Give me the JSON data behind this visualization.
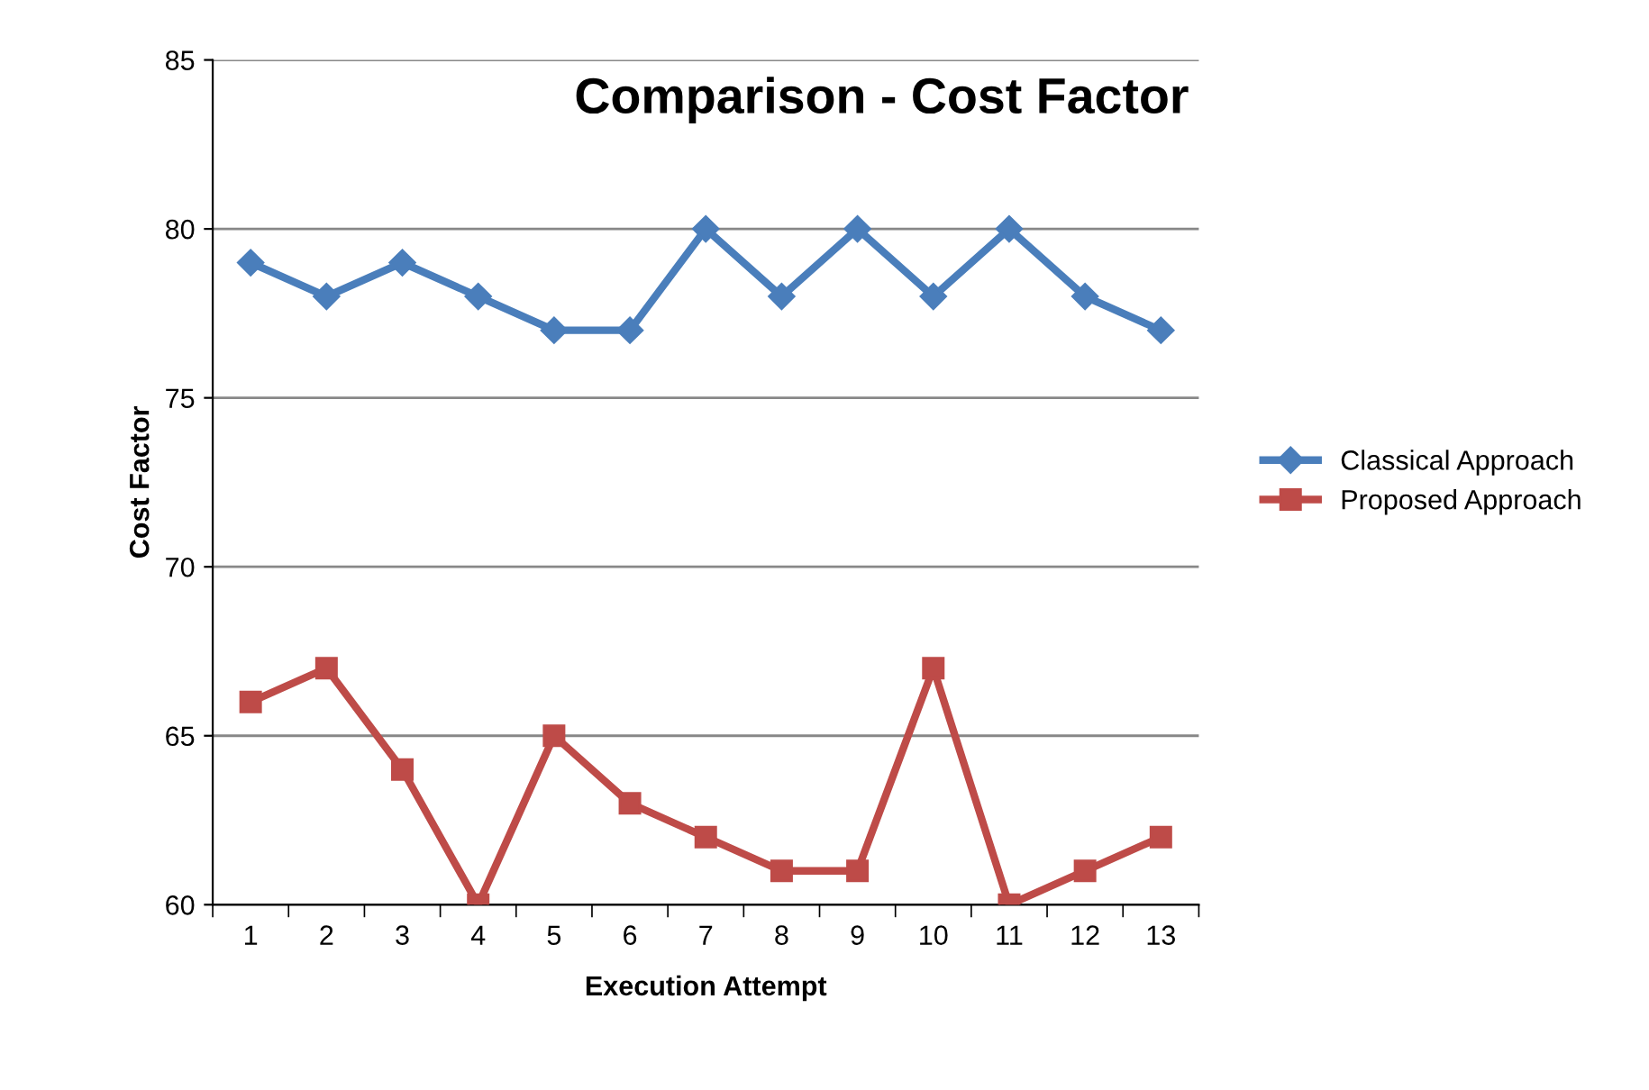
{
  "chart_data": {
    "type": "line",
    "title": "Comparison - Cost Factor",
    "xlabel": "Execution Attempt",
    "ylabel": "Cost Factor",
    "categories": [
      "1",
      "2",
      "3",
      "4",
      "5",
      "6",
      "7",
      "8",
      "9",
      "10",
      "11",
      "12",
      "13"
    ],
    "series": [
      {
        "name": "Classical Approach",
        "color": "#4a7ebb",
        "marker": "diamond",
        "values": [
          79,
          78,
          79,
          78,
          77,
          77,
          80,
          78,
          80,
          78,
          80,
          78,
          77
        ]
      },
      {
        "name": "Proposed Approach",
        "color": "#be4b48",
        "marker": "square",
        "values": [
          66,
          67,
          64,
          60,
          65,
          63,
          62,
          61,
          61,
          67,
          60,
          61,
          62
        ]
      }
    ],
    "ylim": [
      60,
      85
    ],
    "yticks": [
      60,
      65,
      70,
      75,
      80,
      85
    ],
    "grid": "y",
    "legend": "right",
    "line_style": "solid"
  }
}
